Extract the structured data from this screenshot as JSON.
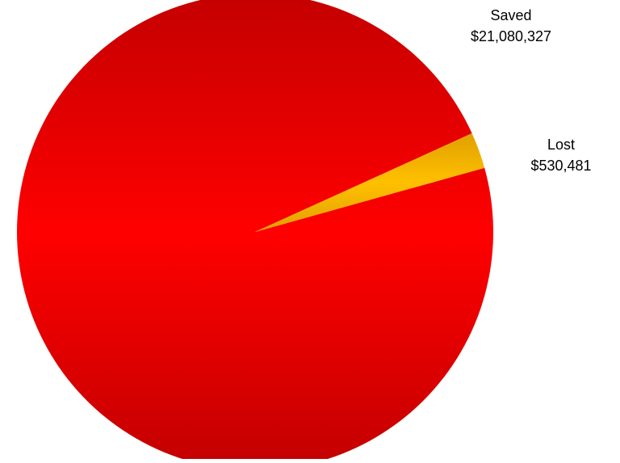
{
  "chart_data": {
    "type": "pie",
    "title": "",
    "slices": [
      {
        "name": "Saved",
        "value": 21080327,
        "display": "$21,080,327",
        "color": "#e00000"
      },
      {
        "name": "Lost",
        "value": 530481,
        "display": "$530,481",
        "color": "#f5b800"
      }
    ],
    "start_angle_deg": -20,
    "legend": "none",
    "data_labels": "outside"
  }
}
